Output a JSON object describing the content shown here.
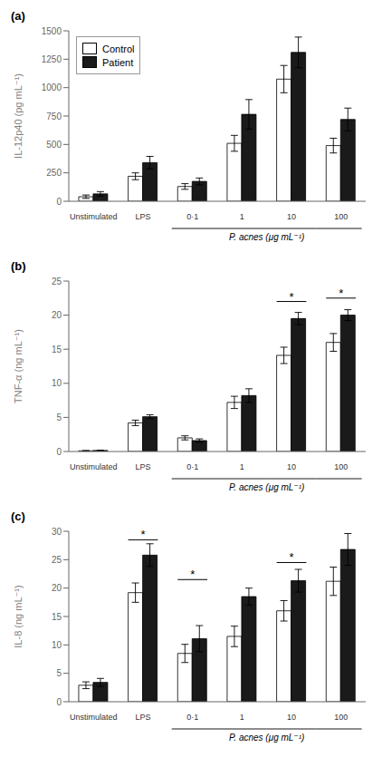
{
  "chart_data": [
    {
      "type": "bar",
      "title": "(a)",
      "ylabel": "IL-12p40 (pg mL⁻¹)",
      "categories": [
        "Unstimulated",
        "LPS",
        "0·1",
        "1",
        "10",
        "100"
      ],
      "series": [
        {
          "name": "Control",
          "color": "#ffffff",
          "values": [
            40,
            220,
            130,
            510,
            1075,
            490
          ],
          "error": [
            15,
            30,
            25,
            70,
            120,
            65
          ]
        },
        {
          "name": "Patient",
          "color": "#1a1a1a",
          "values": [
            65,
            340,
            175,
            765,
            1310,
            720
          ],
          "error": [
            20,
            55,
            30,
            130,
            135,
            100
          ]
        }
      ],
      "ylim": [
        0,
        1500
      ],
      "yticks": [
        0,
        250,
        500,
        750,
        1000,
        1250,
        1500
      ],
      "legend": "upper left",
      "annotations": [],
      "bracket": {
        "text": "P. acnes (μg mL⁻¹)",
        "categories": [
          "0·1",
          "1",
          "10",
          "100"
        ]
      }
    },
    {
      "type": "bar",
      "title": "(b)",
      "ylabel": "TNF-α (ng mL⁻¹)",
      "categories": [
        "Unstimulated",
        "LPS",
        "0·1",
        "1",
        "10",
        "100"
      ],
      "series": [
        {
          "name": "Control",
          "color": "#ffffff",
          "values": [
            0.1,
            4.2,
            2.0,
            7.2,
            14.1,
            16.0
          ],
          "error": [
            0.05,
            0.4,
            0.3,
            0.9,
            1.2,
            1.3
          ]
        },
        {
          "name": "Patient",
          "color": "#1a1a1a",
          "values": [
            0.15,
            5.1,
            1.6,
            8.2,
            19.5,
            20.0
          ],
          "error": [
            0.05,
            0.3,
            0.25,
            1.0,
            0.9,
            0.8
          ]
        }
      ],
      "ylim": [
        0,
        25
      ],
      "yticks": [
        0,
        5,
        10,
        15,
        20,
        25
      ],
      "annotations": [
        {
          "text": "*",
          "x": "10",
          "y": 22.0
        },
        {
          "text": "*",
          "x": "100",
          "y": 22.5
        }
      ],
      "bracket": {
        "text": "P. acnes (μg mL⁻¹)",
        "categories": [
          "0·1",
          "1",
          "10",
          "100"
        ]
      }
    },
    {
      "type": "bar",
      "title": "(c)",
      "ylabel": "IL-8 (ng mL⁻¹)",
      "categories": [
        "Unstimulated",
        "LPS",
        "0·1",
        "1",
        "10",
        "100"
      ],
      "series": [
        {
          "name": "Control",
          "color": "#ffffff",
          "values": [
            2.9,
            19.2,
            8.5,
            11.5,
            16.0,
            21.2
          ],
          "error": [
            0.6,
            1.7,
            1.6,
            1.8,
            1.8,
            2.5
          ]
        },
        {
          "name": "Patient",
          "color": "#1a1a1a",
          "values": [
            3.4,
            25.8,
            11.1,
            18.5,
            21.3,
            26.8
          ],
          "error": [
            0.7,
            2.0,
            2.3,
            1.5,
            2.0,
            2.8
          ]
        }
      ],
      "ylim": [
        0,
        30
      ],
      "yticks": [
        0,
        5,
        10,
        15,
        20,
        25,
        30
      ],
      "annotations": [
        {
          "text": "*",
          "x": "LPS",
          "y": 28.5
        },
        {
          "text": "*",
          "x": "0·1",
          "y": 21.5
        },
        {
          "text": "*",
          "x": "10",
          "y": 24.5
        }
      ],
      "bracket": {
        "text": "P. acnes (μg mL⁻¹)",
        "categories": [
          "0·1",
          "1",
          "10",
          "100"
        ]
      }
    }
  ]
}
